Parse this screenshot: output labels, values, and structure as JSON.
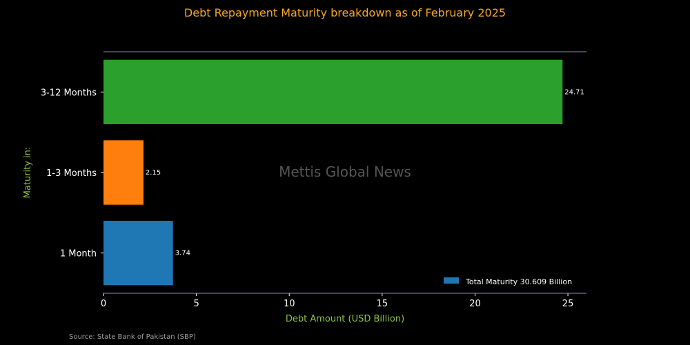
{
  "source": "Source: State Bank of Pakistan (SBP)",
  "watermark": "Mettis Global News",
  "chart_data": {
    "type": "bar",
    "orientation": "horizontal",
    "title": "Debt Repayment Maturity breakdown as of February 2025",
    "xlabel": "Debt Amount (USD Billion)",
    "ylabel": "Maturity in:",
    "categories": [
      "1 Month",
      "1-3 Months",
      "3-12 Months"
    ],
    "values": [
      3.74,
      2.15,
      24.71
    ],
    "value_labels": [
      "3.74",
      "2.15",
      "24.71"
    ],
    "colors": [
      "#1f77b4",
      "#ff7f0e",
      "#2ca02c"
    ],
    "xlim": [
      0,
      26
    ],
    "xticks": [
      0,
      5,
      10,
      15,
      20,
      25
    ],
    "grid": false,
    "legend": {
      "placement": "bottom-right",
      "entries": [
        {
          "label": "Total Maturity 30.609 Billion",
          "color": "#1f77b4"
        }
      ]
    }
  }
}
